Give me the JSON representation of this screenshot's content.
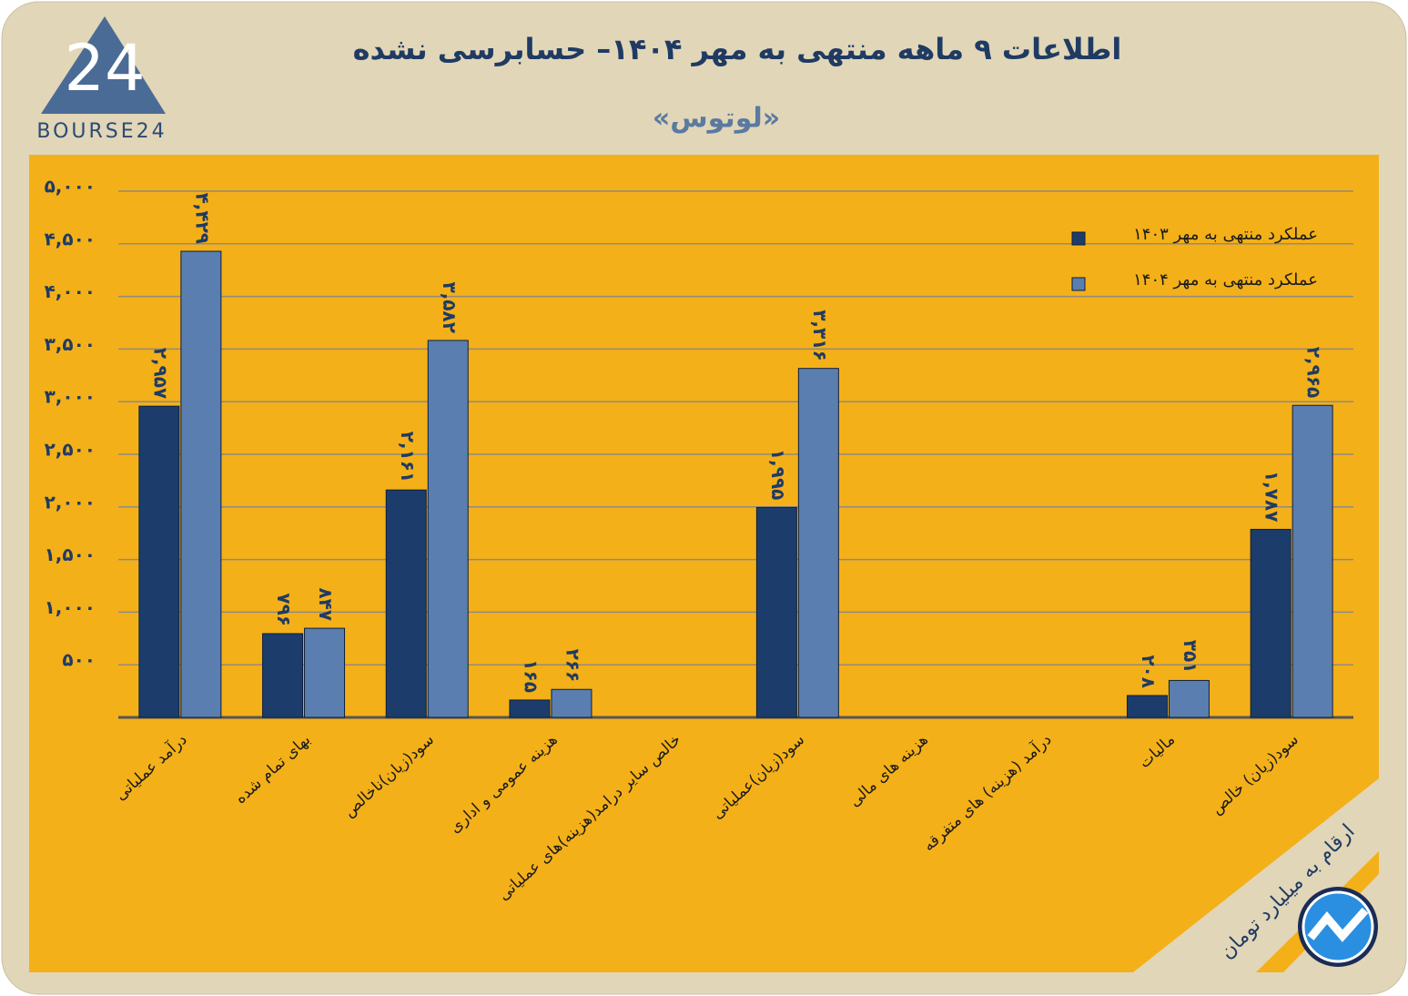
{
  "logo": {
    "mark": "24",
    "text": "BOURSE24"
  },
  "chart_data": {
    "type": "bar",
    "title": "اطلاعات ۹ ماهه منتهی به مهر ۱۴۰۴– حسابرسی نشده",
    "subtitle": "«لوتوس»",
    "note": "ارقام به میلیارد تومان",
    "categories": [
      "درآمد عملیاتی",
      "بهای تمام شده",
      "سود(زیان)ناخالص",
      "هزینه عمومی و اداری",
      "خالص سایر درامد(هزینه)های عملیاتی",
      "سود(زیان)عملیاتی",
      "هزینه های مالی",
      "درآمد (هزینه) های متفرقه",
      "مالیات",
      "سود(زیان) خالص"
    ],
    "series": [
      {
        "name": "عملکرد منتهی به مهر ۱۴۰۳",
        "color": "#1c3d6b",
        "values": [
          2957,
          796,
          2161,
          165,
          null,
          1995,
          null,
          null,
          208,
          1787
        ],
        "value_labels": [
          "۲,۹۵۷",
          "۷۹۶",
          "۲,۱۶۱",
          "۱۶۵",
          null,
          "۱,۹۹۵",
          null,
          null,
          "۲۰۸",
          "۱,۷۸۷"
        ]
      },
      {
        "name": "عملکرد منتهی به مهر ۱۴۰۴",
        "color": "#5a7eb0",
        "values": [
          4429,
          847,
          3582,
          266,
          null,
          3316,
          null,
          null,
          351,
          2965
        ],
        "value_labels": [
          "۴,۴۲۹",
          "۸۴۷",
          "۳,۵۸۲",
          "۲۶۶",
          null,
          "۳,۳۱۶",
          null,
          null,
          "۳۵۱",
          "۲,۹۶۵"
        ]
      }
    ],
    "ylim": [
      0,
      5000
    ],
    "yticks": [
      {
        "value": 500,
        "label": "۵۰۰"
      },
      {
        "value": 1000,
        "label": "۱,۰۰۰"
      },
      {
        "value": 1500,
        "label": "۱,۵۰۰"
      },
      {
        "value": 2000,
        "label": "۲,۰۰۰"
      },
      {
        "value": 2500,
        "label": "۲,۵۰۰"
      },
      {
        "value": 3000,
        "label": "۳,۰۰۰"
      },
      {
        "value": 3500,
        "label": "۳,۵۰۰"
      },
      {
        "value": 4000,
        "label": "۴,۰۰۰"
      },
      {
        "value": 4500,
        "label": "۴,۵۰۰"
      },
      {
        "value": 5000,
        "label": "۵,۰۰۰"
      }
    ],
    "grid": true,
    "legend": "top-right"
  }
}
